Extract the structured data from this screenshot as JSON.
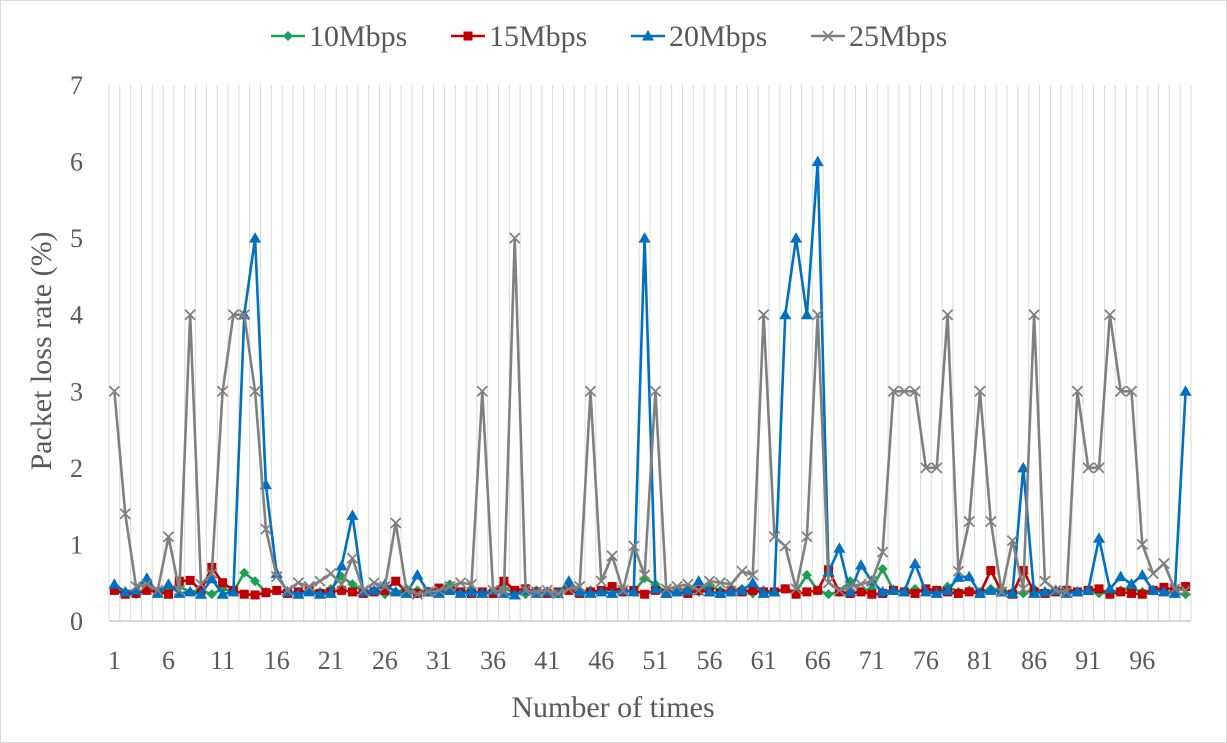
{
  "chart_data": {
    "type": "line",
    "xlabel": "Number of times",
    "ylabel": "Packet loss rate (%)",
    "ylim": [
      0,
      7
    ],
    "yticks": [
      0,
      1,
      2,
      3,
      4,
      5,
      6,
      7
    ],
    "xlim": [
      1,
      100
    ],
    "xtick_labels": [
      "1",
      "6",
      "11",
      "16",
      "21",
      "26",
      "31",
      "36",
      "41",
      "46",
      "51",
      "56",
      "61",
      "66",
      "71",
      "76",
      "81",
      "86",
      "91",
      "96"
    ],
    "grid": "vertical",
    "legend_position": "top",
    "x": [
      1,
      2,
      3,
      4,
      5,
      6,
      7,
      8,
      9,
      10,
      11,
      12,
      13,
      14,
      15,
      16,
      17,
      18,
      19,
      20,
      21,
      22,
      23,
      24,
      25,
      26,
      27,
      28,
      29,
      30,
      31,
      32,
      33,
      34,
      35,
      36,
      37,
      38,
      39,
      40,
      41,
      42,
      43,
      44,
      45,
      46,
      47,
      48,
      49,
      50,
      51,
      52,
      53,
      54,
      55,
      56,
      57,
      58,
      59,
      60,
      61,
      62,
      63,
      64,
      65,
      66,
      67,
      68,
      69,
      70,
      71,
      72,
      73,
      74,
      75,
      76,
      77,
      78,
      79,
      80,
      81,
      82,
      83,
      84,
      85,
      86,
      87,
      88,
      89,
      90,
      91,
      92,
      93,
      94,
      95,
      96,
      97,
      98,
      99,
      100
    ],
    "series": [
      {
        "name": "10Mbps",
        "color": "#1aa152",
        "marker": "diamond",
        "values": [
          0.4,
          0.38,
          0.35,
          0.42,
          0.38,
          0.4,
          0.45,
          0.38,
          0.4,
          0.35,
          0.42,
          0.38,
          0.63,
          0.52,
          0.38,
          0.4,
          0.36,
          0.38,
          0.4,
          0.38,
          0.42,
          0.58,
          0.48,
          0.38,
          0.4,
          0.35,
          0.38,
          0.42,
          0.4,
          0.38,
          0.42,
          0.48,
          0.38,
          0.4,
          0.36,
          0.38,
          0.42,
          0.38,
          0.35,
          0.4,
          0.38,
          0.36,
          0.46,
          0.38,
          0.4,
          0.38,
          0.42,
          0.4,
          0.38,
          0.56,
          0.48,
          0.38,
          0.4,
          0.42,
          0.38,
          0.45,
          0.4,
          0.38,
          0.42,
          0.36,
          0.4,
          0.38,
          0.42,
          0.38,
          0.6,
          0.4,
          0.35,
          0.38,
          0.52,
          0.38,
          0.42,
          0.68,
          0.4,
          0.38,
          0.42,
          0.38,
          0.4,
          0.45,
          0.38,
          0.4,
          0.38,
          0.42,
          0.4,
          0.38,
          0.36,
          0.42,
          0.38,
          0.4,
          0.42,
          0.38,
          0.4,
          0.36,
          0.38,
          0.4,
          0.42,
          0.38,
          0.4,
          0.38,
          0.36,
          0.35
        ]
      },
      {
        "name": "15Mbps",
        "color": "#c00000",
        "marker": "square",
        "values": [
          0.4,
          0.35,
          0.36,
          0.4,
          0.38,
          0.35,
          0.52,
          0.53,
          0.4,
          0.7,
          0.5,
          0.4,
          0.35,
          0.34,
          0.37,
          0.4,
          0.36,
          0.38,
          0.4,
          0.36,
          0.38,
          0.4,
          0.38,
          0.36,
          0.38,
          0.4,
          0.52,
          0.38,
          0.36,
          0.38,
          0.43,
          0.4,
          0.38,
          0.36,
          0.38,
          0.36,
          0.52,
          0.4,
          0.42,
          0.38,
          0.36,
          0.38,
          0.4,
          0.36,
          0.38,
          0.4,
          0.45,
          0.38,
          0.4,
          0.35,
          0.4,
          0.36,
          0.38,
          0.36,
          0.4,
          0.38,
          0.36,
          0.4,
          0.38,
          0.4,
          0.38,
          0.38,
          0.42,
          0.35,
          0.38,
          0.4,
          0.67,
          0.38,
          0.36,
          0.38,
          0.35,
          0.36,
          0.4,
          0.38,
          0.36,
          0.42,
          0.4,
          0.38,
          0.36,
          0.38,
          0.36,
          0.66,
          0.38,
          0.35,
          0.66,
          0.38,
          0.36,
          0.38,
          0.4,
          0.38,
          0.4,
          0.42,
          0.35,
          0.38,
          0.36,
          0.35,
          0.4,
          0.44,
          0.4,
          0.45
        ]
      },
      {
        "name": "20Mbps",
        "color": "#0070c0",
        "marker": "triangle",
        "values": [
          0.48,
          0.38,
          0.4,
          0.56,
          0.36,
          0.48,
          0.36,
          0.38,
          0.35,
          0.55,
          0.35,
          0.38,
          4.0,
          5.0,
          1.78,
          0.62,
          0.38,
          0.35,
          0.38,
          0.35,
          0.36,
          0.72,
          1.38,
          0.38,
          0.4,
          0.48,
          0.38,
          0.36,
          0.6,
          0.38,
          0.36,
          0.4,
          0.36,
          0.38,
          0.36,
          0.4,
          0.36,
          0.34,
          0.4,
          0.36,
          0.38,
          0.36,
          0.52,
          0.38,
          0.36,
          0.38,
          0.36,
          0.4,
          0.38,
          5.0,
          0.42,
          0.36,
          0.38,
          0.4,
          0.52,
          0.38,
          0.36,
          0.38,
          0.4,
          0.5,
          0.36,
          0.38,
          4.0,
          5.0,
          4.0,
          6.0,
          0.64,
          0.95,
          0.38,
          0.73,
          0.52,
          0.38,
          0.4,
          0.38,
          0.75,
          0.38,
          0.36,
          0.4,
          0.57,
          0.58,
          0.36,
          0.4,
          0.38,
          0.36,
          2.0,
          0.36,
          0.38,
          0.4,
          0.36,
          0.38,
          0.4,
          1.08,
          0.42,
          0.58,
          0.48,
          0.6,
          0.4,
          0.38,
          0.36,
          3.0
        ]
      },
      {
        "name": "25Mbps",
        "color": "#808080",
        "marker": "x",
        "values": [
          3.0,
          1.4,
          0.45,
          0.48,
          0.4,
          1.1,
          0.4,
          4.0,
          0.48,
          0.62,
          3.0,
          4.0,
          4.0,
          3.0,
          1.2,
          0.58,
          0.4,
          0.5,
          0.45,
          0.52,
          0.62,
          0.48,
          0.82,
          0.4,
          0.5,
          0.45,
          1.28,
          0.4,
          0.35,
          0.38,
          0.4,
          0.45,
          0.5,
          0.48,
          3.0,
          0.4,
          0.38,
          5.0,
          0.4,
          0.38,
          0.4,
          0.36,
          0.42,
          0.45,
          3.0,
          0.52,
          0.85,
          0.4,
          0.98,
          0.6,
          3.0,
          0.42,
          0.45,
          0.48,
          0.4,
          0.52,
          0.5,
          0.48,
          0.65,
          0.6,
          4.0,
          1.1,
          0.98,
          0.42,
          1.1,
          4.0,
          0.5,
          0.4,
          0.45,
          0.48,
          0.52,
          0.9,
          3.0,
          3.0,
          3.0,
          2.0,
          2.0,
          4.0,
          0.65,
          1.3,
          3.0,
          1.3,
          0.38,
          1.05,
          0.42,
          4.0,
          0.52,
          0.4,
          0.38,
          3.0,
          2.0,
          2.0,
          4.0,
          3.0,
          3.0,
          1.0,
          0.62,
          0.75,
          0.42,
          0.4
        ]
      }
    ]
  }
}
